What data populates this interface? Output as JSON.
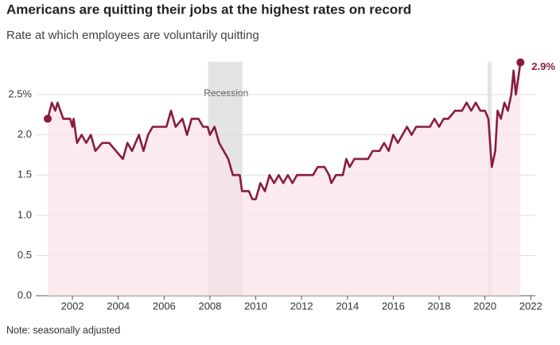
{
  "chart_data": {
    "type": "line",
    "title": "Americans are quitting their jobs at the highest rates on record",
    "subtitle": "Rate at which employees are voluntarily quitting",
    "note": "Note: seasonally adjusted",
    "color": "#8a1b3f",
    "fill_color": "#f9e4e8",
    "x": [
      2000.92,
      2001.1,
      2001.25,
      2001.35,
      2001.6,
      2001.9,
      2002.0,
      2002.05,
      2002.2,
      2002.4,
      2002.6,
      2002.8,
      2003.0,
      2003.3,
      2003.6,
      2003.9,
      2004.2,
      2004.4,
      2004.6,
      2004.9,
      2005.1,
      2005.3,
      2005.5,
      2005.8,
      2006.1,
      2006.3,
      2006.5,
      2006.8,
      2007.0,
      2007.2,
      2007.5,
      2007.7,
      2007.9,
      2008.0,
      2008.2,
      2008.4,
      2008.6,
      2008.8,
      2009.0,
      2009.3,
      2009.4,
      2009.7,
      2009.85,
      2010.0,
      2010.2,
      2010.4,
      2010.6,
      2010.8,
      2011.0,
      2011.2,
      2011.4,
      2011.6,
      2011.8,
      2012.0,
      2012.3,
      2012.5,
      2012.7,
      2013.0,
      2013.2,
      2013.3,
      2013.5,
      2013.8,
      2013.95,
      2014.1,
      2014.3,
      2014.6,
      2014.9,
      2015.1,
      2015.4,
      2015.6,
      2015.8,
      2016.0,
      2016.2,
      2016.4,
      2016.6,
      2016.8,
      2017.0,
      2017.3,
      2017.6,
      2017.8,
      2018.0,
      2018.2,
      2018.4,
      2018.7,
      2019.0,
      2019.2,
      2019.4,
      2019.6,
      2019.8,
      2020.0,
      2020.15,
      2020.3,
      2020.45,
      2020.55,
      2020.7,
      2020.85,
      2021.0,
      2021.15,
      2021.25,
      2021.35,
      2021.45,
      2021.55
    ],
    "values": [
      2.2,
      2.4,
      2.3,
      2.4,
      2.2,
      2.2,
      2.1,
      2.2,
      1.9,
      2.0,
      1.9,
      2.0,
      1.8,
      1.9,
      1.9,
      1.8,
      1.7,
      1.9,
      1.8,
      2.0,
      1.8,
      2.0,
      2.1,
      2.1,
      2.1,
      2.3,
      2.1,
      2.2,
      2.0,
      2.2,
      2.2,
      2.1,
      2.1,
      2.0,
      2.1,
      1.9,
      1.8,
      1.7,
      1.5,
      1.5,
      1.3,
      1.3,
      1.2,
      1.2,
      1.4,
      1.3,
      1.5,
      1.4,
      1.5,
      1.4,
      1.5,
      1.4,
      1.5,
      1.5,
      1.5,
      1.5,
      1.6,
      1.6,
      1.5,
      1.4,
      1.5,
      1.5,
      1.7,
      1.6,
      1.7,
      1.7,
      1.7,
      1.8,
      1.8,
      1.9,
      1.8,
      2.0,
      1.9,
      2.0,
      2.1,
      2.0,
      2.1,
      2.1,
      2.1,
      2.2,
      2.1,
      2.2,
      2.2,
      2.3,
      2.3,
      2.4,
      2.3,
      2.4,
      2.3,
      2.3,
      2.2,
      1.6,
      1.8,
      2.3,
      2.2,
      2.4,
      2.3,
      2.5,
      2.8,
      2.5,
      2.7,
      2.9
    ],
    "annotations": [
      "2.9%"
    ],
    "shaded_periods": [
      {
        "label": "Recession",
        "start": 2007.92,
        "end": 2009.42
      },
      {
        "start": 2020.12,
        "end": 2020.3
      }
    ],
    "xlim": [
      2000.4,
      2022.2
    ],
    "xticks": [
      2002,
      2004,
      2006,
      2008,
      2010,
      2012,
      2014,
      2016,
      2018,
      2020,
      2022
    ],
    "ylim": [
      0,
      2.95
    ],
    "yticks": [
      {
        "value": 0,
        "label": "0.0"
      },
      0.5,
      {
        "value": 1,
        "label": "1.0"
      },
      1.5,
      {
        "value": 2,
        "label": "2.0"
      },
      {
        "value": 2.5,
        "label": "2.5%"
      }
    ],
    "grid": true
  }
}
